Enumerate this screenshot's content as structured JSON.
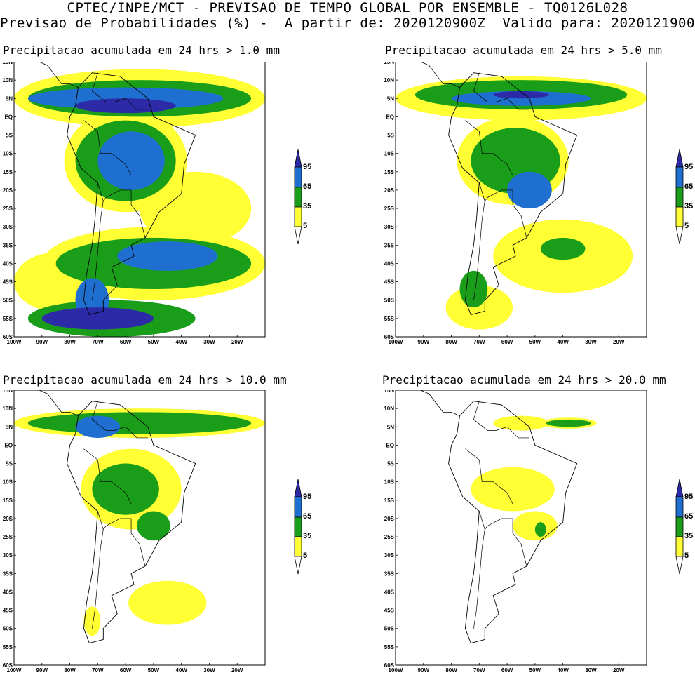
{
  "header": {
    "line1": "CPTEC/INPE/MCT - PREVISAO DE TEMPO GLOBAL POR ENSEMBLE - TQ0126L028",
    "line2": "Previsao de Probabilidades (%) -  A partir de: 2020120900Z  Valido para: 2020121900Z"
  },
  "panels": [
    {
      "title": "Precipitacao acumulada em 24 hrs > 1.0 mm"
    },
    {
      "title": "Precipitacao acumulada em 24 hrs > 5.0 mm"
    },
    {
      "title": "Precipitacao acumulada em 24 hrs > 10.0 mm"
    },
    {
      "title": "Precipitacao acumulada em 24 hrs > 20.0 mm"
    }
  ],
  "axes": {
    "lat_labels": [
      "15N",
      "10N",
      "5N",
      "EQ",
      "5S",
      "10S",
      "15S",
      "20S",
      "25S",
      "30S",
      "35S",
      "40S",
      "45S",
      "50S",
      "55S",
      "60S"
    ],
    "lon_labels": [
      "100W",
      "90W",
      "80W",
      "70W",
      "60W",
      "50W",
      "40W",
      "30W",
      "20W"
    ]
  },
  "legend": {
    "levels": [
      "5",
      "35",
      "65",
      "95"
    ],
    "colors": [
      "#ffff33",
      "#1a9e1a",
      "#1e6fd0",
      "#2d2aa8"
    ]
  }
}
